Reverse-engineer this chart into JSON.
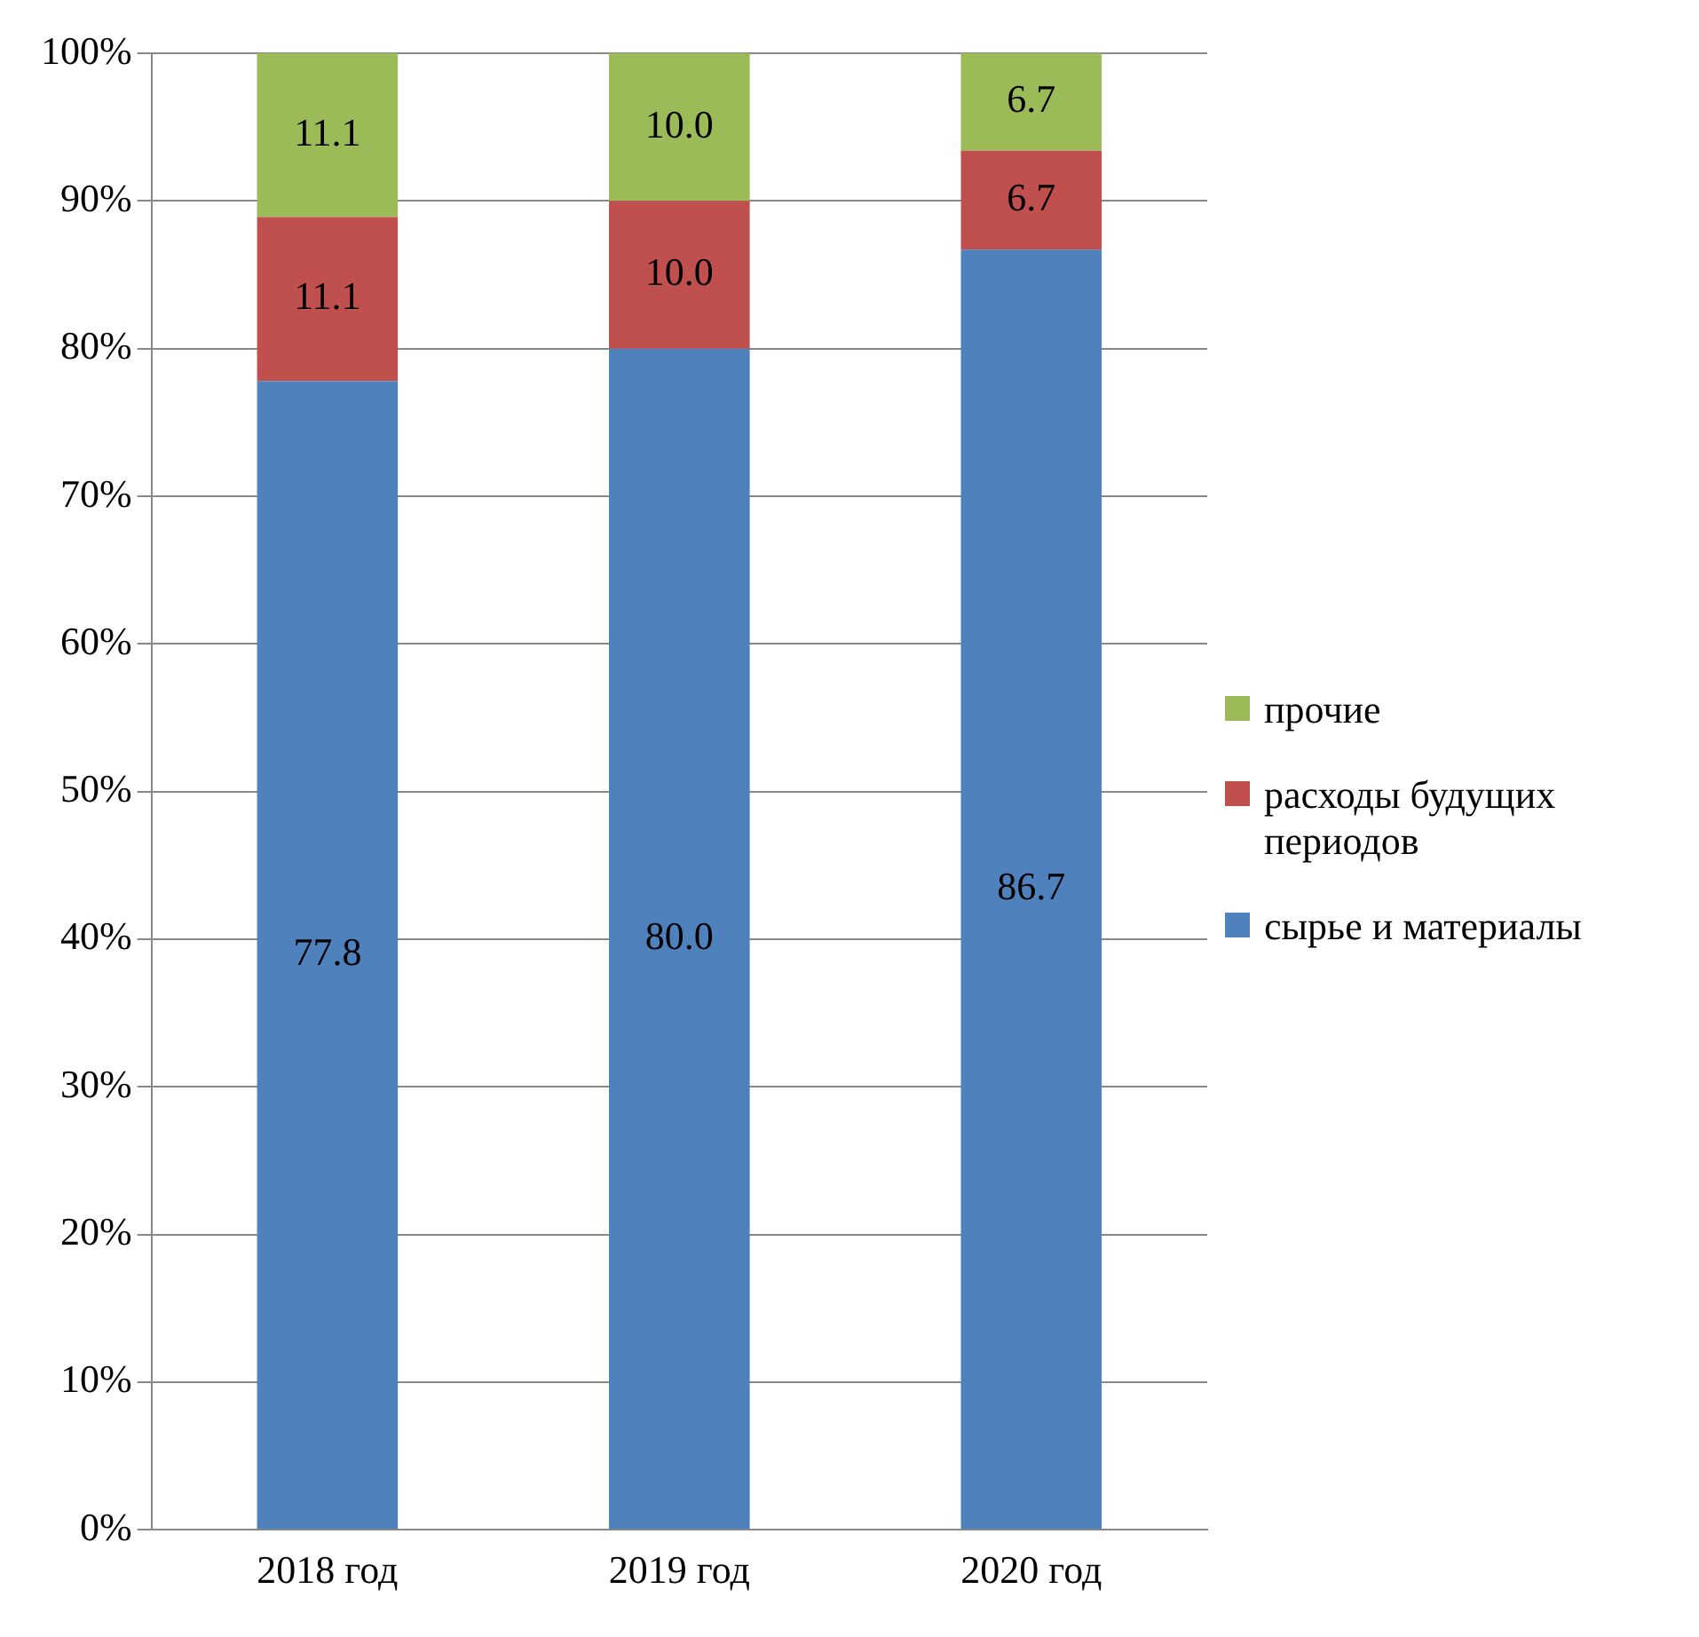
{
  "chart_data": {
    "type": "bar",
    "stacked": true,
    "categories": [
      "2018 год",
      "2019 год",
      "2020 год"
    ],
    "series": [
      {
        "name": "сырье и материалы",
        "color": "#4f81bd",
        "values": [
          77.8,
          80,
          86.7
        ],
        "value_labels": [
          "77.8",
          "80.0",
          "86.7"
        ]
      },
      {
        "name": "расходы будущих периодов",
        "color": "#c0504d",
        "values": [
          11.1,
          10,
          6.7
        ],
        "value_labels": [
          "11.1",
          "10.0",
          "6.7"
        ]
      },
      {
        "name": "прочие",
        "color": "#9bbb59",
        "values": [
          11.1,
          10,
          6.7
        ],
        "value_labels": [
          "11.1",
          "10.0",
          "6.7"
        ]
      }
    ],
    "ylim": [
      0,
      100
    ],
    "yticks": [
      {
        "value": 0,
        "label": "0%"
      },
      {
        "value": 10,
        "label": "10%"
      },
      {
        "value": 20,
        "label": "20%"
      },
      {
        "value": 30,
        "label": "30%"
      },
      {
        "value": 40,
        "label": "40%"
      },
      {
        "value": 50,
        "label": "50%"
      },
      {
        "value": 60,
        "label": "60%"
      },
      {
        "value": 70,
        "label": "70%"
      },
      {
        "value": 80,
        "label": "80%"
      },
      {
        "value": 90,
        "label": "90%"
      },
      {
        "value": 100,
        "label": "100%"
      }
    ],
    "grid": "y",
    "legend": "right"
  }
}
